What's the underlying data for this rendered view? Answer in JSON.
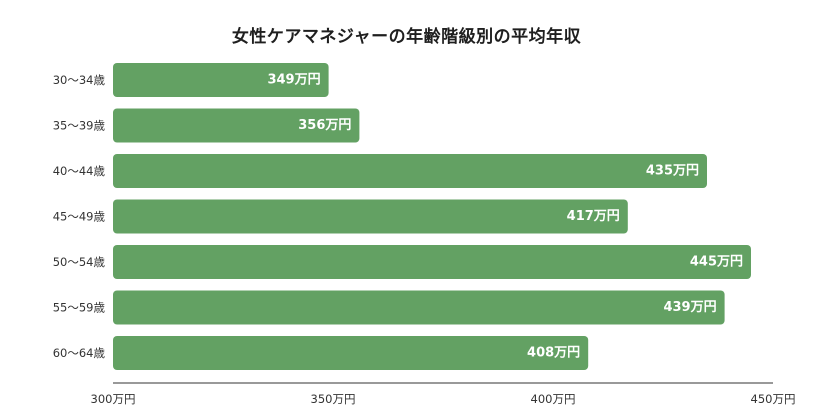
{
  "chart_data": {
    "type": "bar",
    "orientation": "horizontal",
    "title": "女性ケアマネジャーの年齢階級別の平均年収",
    "categories": [
      "30〜34歳",
      "35〜39歳",
      "40〜44歳",
      "45〜49歳",
      "50〜54歳",
      "55〜59歳",
      "60〜64歳"
    ],
    "values": [
      349,
      356,
      435,
      417,
      445,
      439,
      408
    ],
    "data_labels": [
      "349万円",
      "356万円",
      "435万円",
      "417万円",
      "445万円",
      "439万円",
      "408万円"
    ],
    "xlim": [
      300,
      450
    ],
    "x_ticks": [
      300,
      350,
      400,
      450
    ],
    "x_tick_labels": [
      "300万円",
      "350万円",
      "400万円",
      "450万円"
    ],
    "xlabel": "",
    "ylabel": "",
    "grid": false,
    "bar_color": "#63a163",
    "label_color": "#ffffff"
  }
}
